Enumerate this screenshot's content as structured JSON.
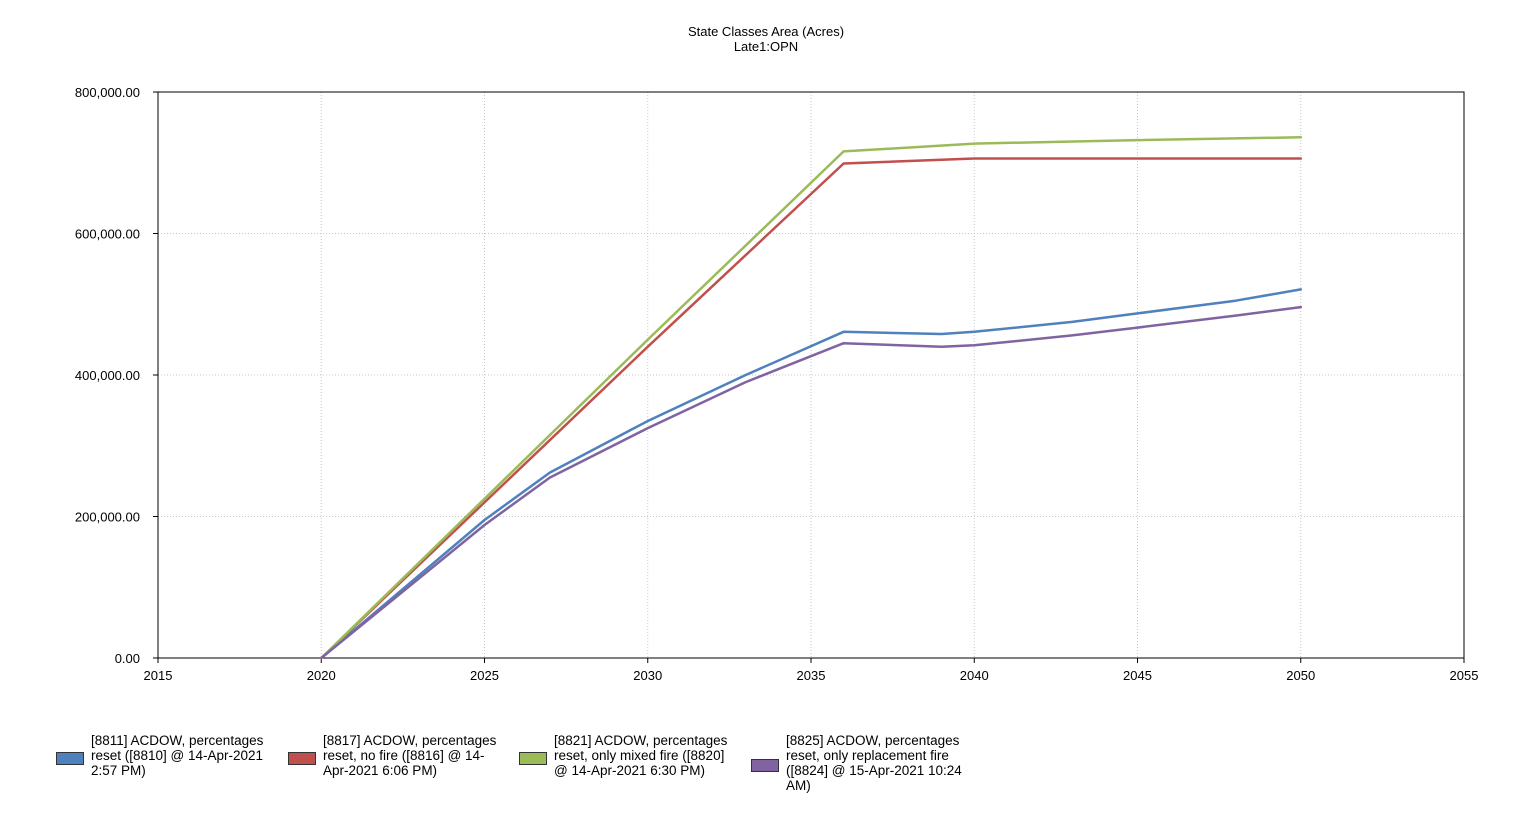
{
  "chart_data": {
    "type": "line",
    "title": "State Classes Area (Acres)",
    "subtitle": "Late1:OPN",
    "xlabel": "",
    "ylabel": "",
    "xlim": [
      2015,
      2055
    ],
    "ylim": [
      0,
      800000
    ],
    "x_ticks": [
      "2015",
      "2020",
      "2025",
      "2030",
      "2035",
      "2040",
      "2045",
      "2050",
      "2055"
    ],
    "y_ticks": [
      "0.00",
      "200,000.00",
      "400,000.00",
      "600,000.00",
      "800,000.00"
    ],
    "grid": true,
    "legend_position": "bottom",
    "series": [
      {
        "name": "[8811] ACDOW, percentages reset ([8810] @ 14-Apr-2021 2:57 PM)",
        "color": "#4f81bd",
        "points": [
          [
            2020,
            0
          ],
          [
            2025,
            195000
          ],
          [
            2027,
            262000
          ],
          [
            2030,
            335000
          ],
          [
            2033,
            400000
          ],
          [
            2036,
            461000
          ],
          [
            2039,
            458000
          ],
          [
            2040,
            461000
          ],
          [
            2043,
            475000
          ],
          [
            2045,
            487000
          ],
          [
            2048,
            505000
          ],
          [
            2050,
            521000
          ]
        ]
      },
      {
        "name": "[8817] ACDOW, percentages reset, no fire ([8816] @ 14-Apr-2021 6:06 PM)",
        "color": "#c0504d",
        "points": [
          [
            2020,
            0
          ],
          [
            2025,
            220000
          ],
          [
            2030,
            440000
          ],
          [
            2036,
            699000
          ],
          [
            2040,
            706000
          ],
          [
            2045,
            706000
          ],
          [
            2050,
            706000
          ]
        ]
      },
      {
        "name": "[8821] ACDOW, percentages reset, only mixed fire ([8820] @ 14-Apr-2021 6:30 PM)",
        "color": "#9bbb59",
        "points": [
          [
            2020,
            0
          ],
          [
            2025,
            225000
          ],
          [
            2030,
            450000
          ],
          [
            2036,
            716000
          ],
          [
            2040,
            727000
          ],
          [
            2045,
            732000
          ],
          [
            2050,
            736000
          ]
        ]
      },
      {
        "name": "[8825] ACDOW, percentages reset, only replacement fire ([8824] @ 15-Apr-2021 10:24 AM)",
        "color": "#8064a2",
        "points": [
          [
            2020,
            0
          ],
          [
            2025,
            188000
          ],
          [
            2027,
            255000
          ],
          [
            2030,
            325000
          ],
          [
            2033,
            390000
          ],
          [
            2036,
            445000
          ],
          [
            2039,
            440000
          ],
          [
            2040,
            442000
          ],
          [
            2043,
            456000
          ],
          [
            2045,
            467000
          ],
          [
            2048,
            484000
          ],
          [
            2050,
            496000
          ]
        ]
      }
    ]
  }
}
